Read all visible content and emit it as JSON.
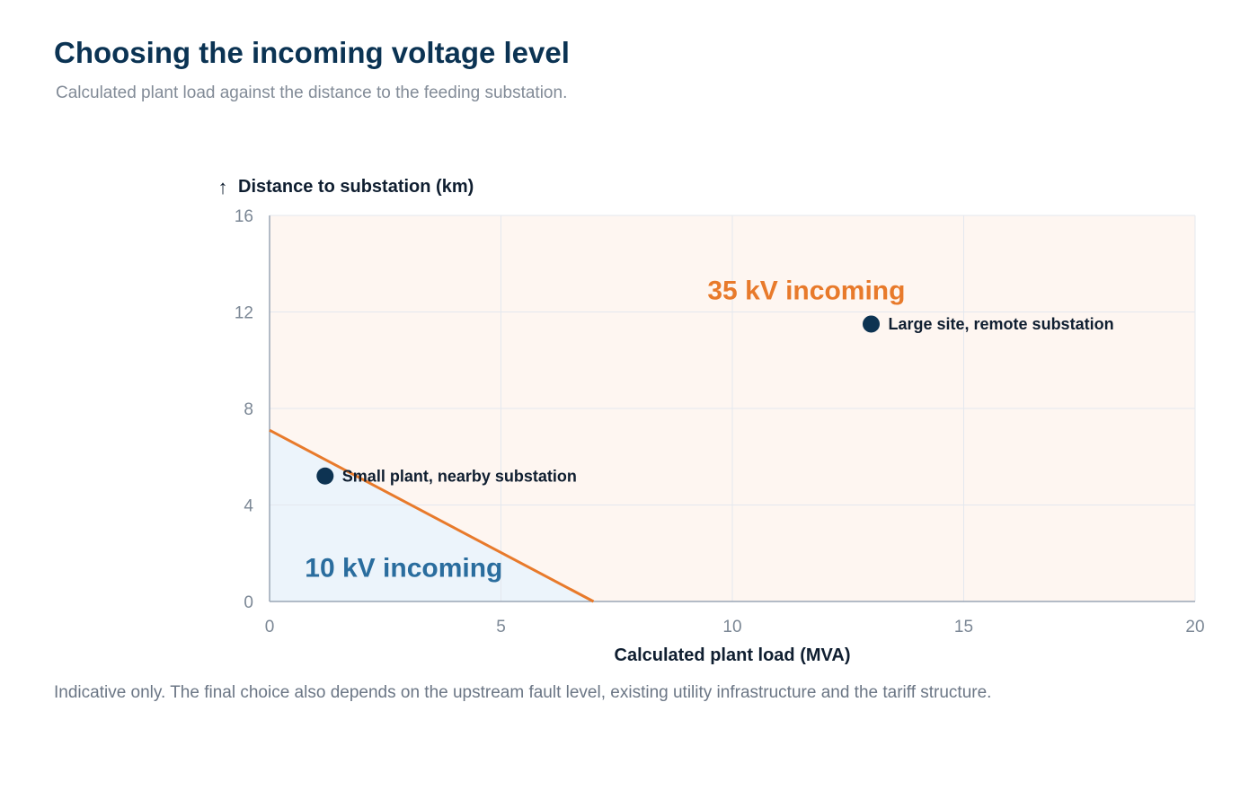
{
  "page": {
    "title": "Choosing the incoming voltage level",
    "subtitle": "Calculated plant load against the distance to the feeding substation.",
    "footnote": "Indicative only. The final choice also depends on the upstream fault level, existing utility infrastructure and the tariff structure."
  },
  "chart_data": {
    "type": "scatter",
    "xlabel": "Calculated plant load (MVA)",
    "ylabel": "Distance to substation (km)",
    "ylabel_arrow": "↑",
    "xlim": [
      0,
      20
    ],
    "ylim": [
      0,
      16
    ],
    "x_ticks": [
      0,
      5,
      10,
      15,
      20
    ],
    "y_ticks": [
      0,
      4,
      8,
      12,
      16
    ],
    "grid": true,
    "boundary": {
      "points": [
        [
          0,
          7.1
        ],
        [
          7,
          0
        ]
      ],
      "color": "#e87a2b"
    },
    "regions": [
      {
        "name": "10 kV incoming",
        "label_at": [
          2.9,
          1.4
        ],
        "color": "#2a6d9e",
        "fill": "#ecf4fb"
      },
      {
        "name": "35 kV incoming",
        "label_at": [
          11.6,
          12.9
        ],
        "color": "#e87a2b",
        "fill": "#fef6f1"
      }
    ],
    "points": [
      {
        "label": "Small plant, nearby substation",
        "x": 1.2,
        "y": 5.2
      },
      {
        "label": "Large site, remote substation",
        "x": 13,
        "y": 11.5
      }
    ],
    "colors": {
      "point": "#0d3352",
      "axis": "#9aa6b5",
      "grid": "#e4e8ee",
      "tick_text": "#7b8795",
      "label_text": "#0f1e30"
    }
  }
}
